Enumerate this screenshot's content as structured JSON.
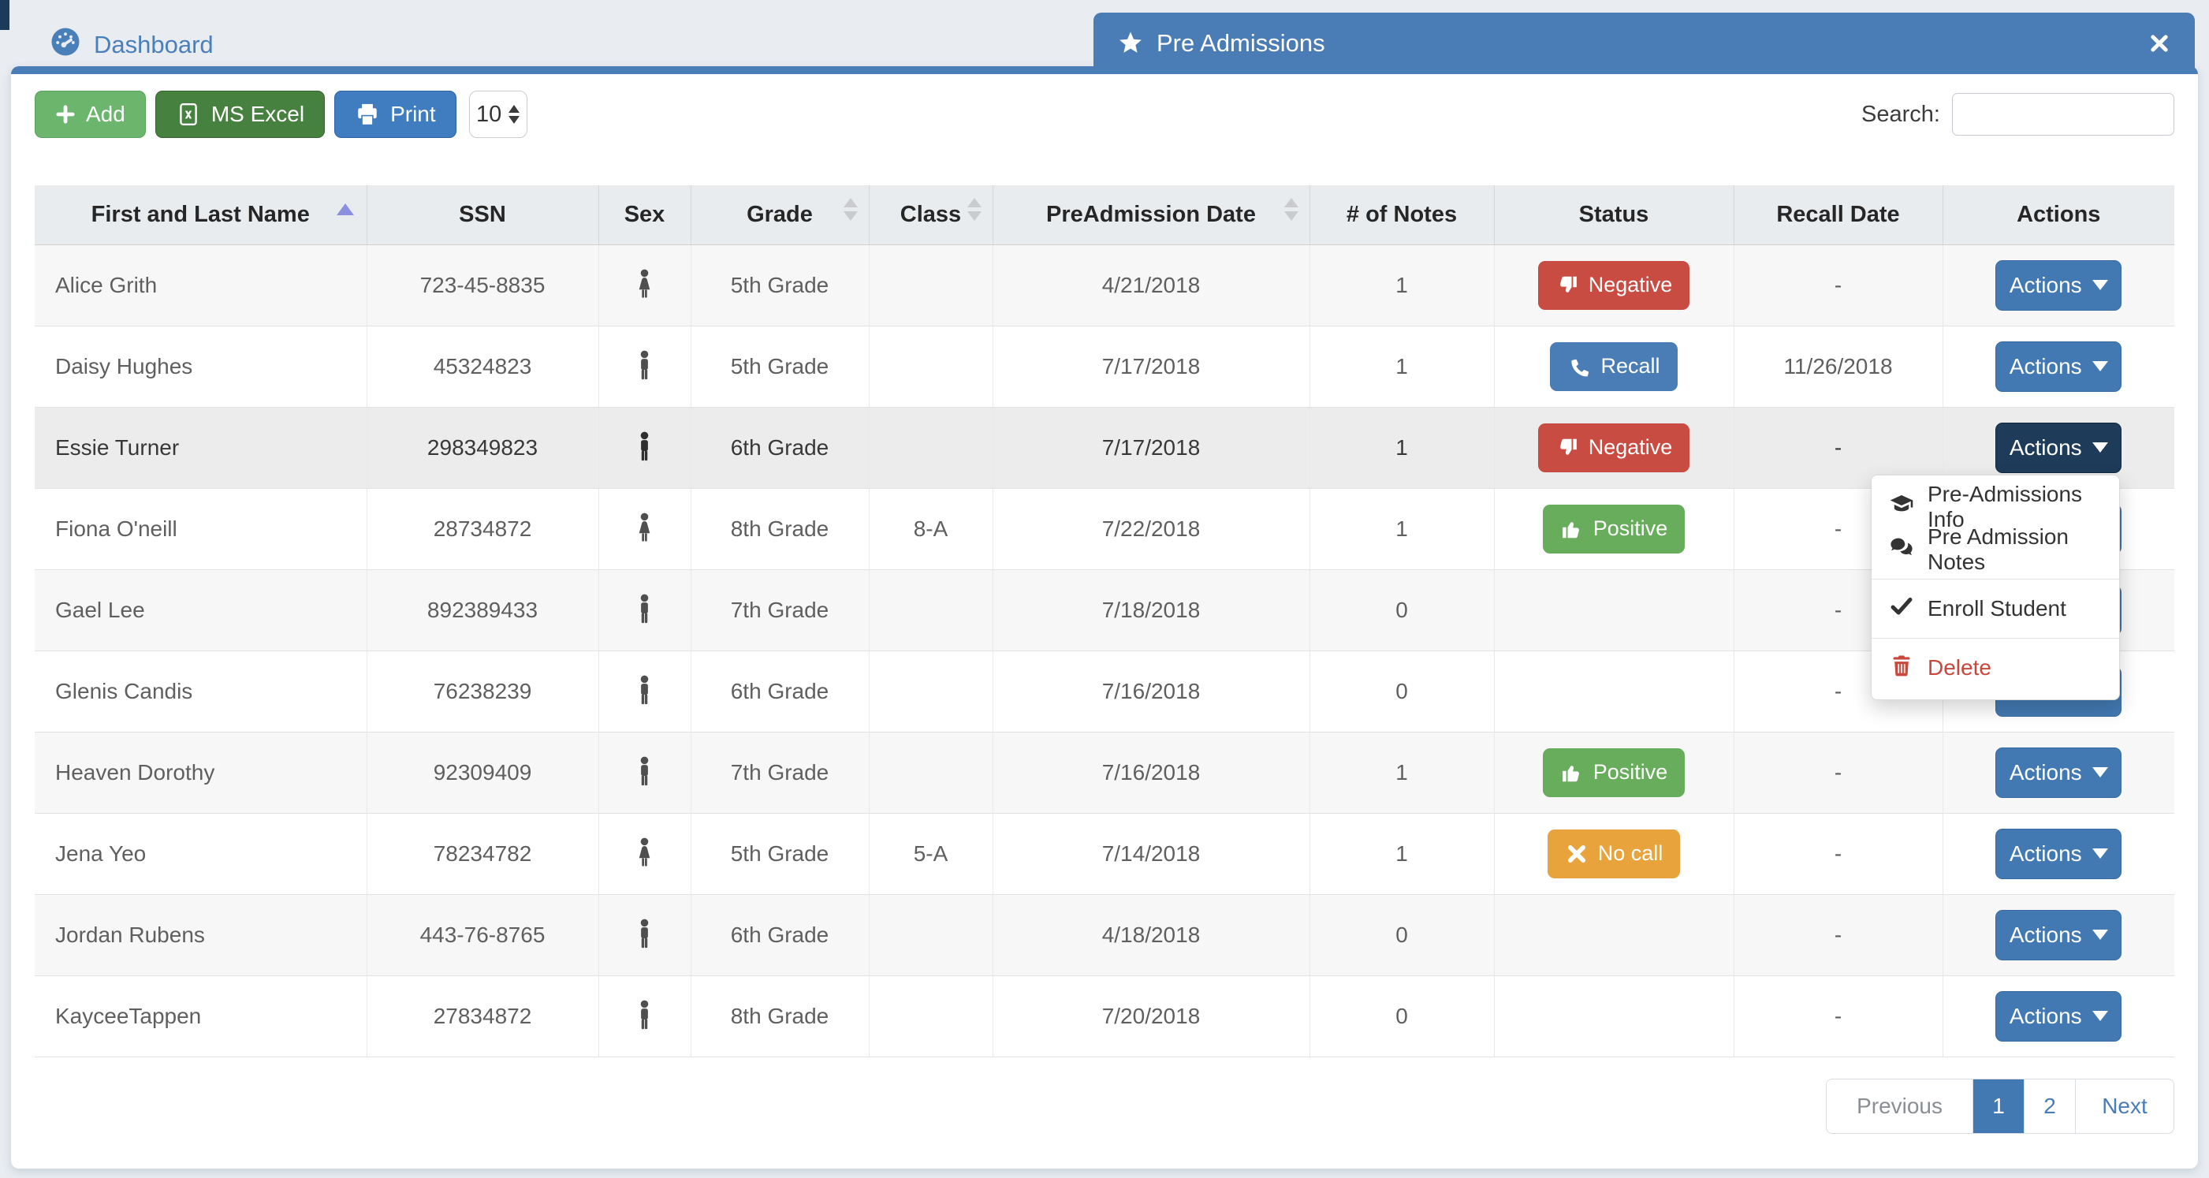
{
  "tabs": {
    "dashboard": "Dashboard",
    "pre_admissions": "Pre Admissions"
  },
  "toolbar": {
    "add": "Add",
    "excel": "MS Excel",
    "print": "Print",
    "page_size": "10",
    "search_label": "Search:",
    "search_value": ""
  },
  "table": {
    "actions_label": "Actions",
    "headers": [
      {
        "label": "First and Last Name",
        "sort": "asc"
      },
      {
        "label": "SSN",
        "sort": "none"
      },
      {
        "label": "Sex",
        "sort": "none"
      },
      {
        "label": "Grade",
        "sort": "both"
      },
      {
        "label": "Class",
        "sort": "both"
      },
      {
        "label": "PreAdmission Date",
        "sort": "both"
      },
      {
        "label": "# of Notes",
        "sort": "none"
      },
      {
        "label": "Status",
        "sort": "none"
      },
      {
        "label": "Recall Date",
        "sort": "none"
      },
      {
        "label": "Actions",
        "sort": "none"
      }
    ],
    "rows": [
      {
        "name": "Alice Grith",
        "ssn": "723-45-8835",
        "sex": "female",
        "grade": "5th Grade",
        "class": "",
        "date": "4/21/2018",
        "notes": "1",
        "status": {
          "label": "Negative",
          "type": "negative",
          "icon": "thumbs-down"
        },
        "recall": "-"
      },
      {
        "name": "Daisy Hughes",
        "ssn": "45324823",
        "sex": "male",
        "grade": "5th Grade",
        "class": "",
        "date": "7/17/2018",
        "notes": "1",
        "status": {
          "label": "Recall",
          "type": "recall",
          "icon": "phone"
        },
        "recall": "11/26/2018"
      },
      {
        "name": "Essie Turner",
        "ssn": "298349823",
        "sex": "male",
        "grade": "6th Grade",
        "class": "",
        "date": "7/17/2018",
        "notes": "1",
        "status": {
          "label": "Negative",
          "type": "negative",
          "icon": "thumbs-down"
        },
        "recall": "-",
        "active": true
      },
      {
        "name": "Fiona O'neill",
        "ssn": "28734872",
        "sex": "female",
        "grade": "8th Grade",
        "class": "8-A",
        "date": "7/22/2018",
        "notes": "1",
        "status": {
          "label": "Positive",
          "type": "positive",
          "icon": "thumbs-up"
        },
        "recall": "-"
      },
      {
        "name": "Gael Lee",
        "ssn": "892389433",
        "sex": "male",
        "grade": "7th Grade",
        "class": "",
        "date": "7/18/2018",
        "notes": "0",
        "status": null,
        "recall": "-"
      },
      {
        "name": "Glenis Candis",
        "ssn": "76238239",
        "sex": "male",
        "grade": "6th Grade",
        "class": "",
        "date": "7/16/2018",
        "notes": "0",
        "status": null,
        "recall": "-"
      },
      {
        "name": "Heaven Dorothy",
        "ssn": "92309409",
        "sex": "male",
        "grade": "7th Grade",
        "class": "",
        "date": "7/16/2018",
        "notes": "1",
        "status": {
          "label": "Positive",
          "type": "positive",
          "icon": "thumbs-up"
        },
        "recall": "-"
      },
      {
        "name": "Jena Yeo",
        "ssn": "78234782",
        "sex": "female",
        "grade": "5th Grade",
        "class": "5-A",
        "date": "7/14/2018",
        "notes": "1",
        "status": {
          "label": "No call",
          "type": "nocall",
          "icon": "x-mark"
        },
        "recall": "-"
      },
      {
        "name": "Jordan Rubens",
        "ssn": "443-76-8765",
        "sex": "male",
        "grade": "6th Grade",
        "class": "",
        "date": "4/18/2018",
        "notes": "0",
        "status": null,
        "recall": "-"
      },
      {
        "name": "KayceeTappen",
        "ssn": "27834872",
        "sex": "male",
        "grade": "8th Grade",
        "class": "",
        "date": "7/20/2018",
        "notes": "0",
        "status": null,
        "recall": "-"
      }
    ]
  },
  "actions_menu": {
    "items": [
      {
        "label": "Pre-Admissions Info",
        "icon": "graduation-cap"
      },
      {
        "label": "Pre Admission Notes",
        "icon": "comments"
      },
      {
        "divider": true
      },
      {
        "label": "Enroll Student",
        "icon": "check"
      },
      {
        "divider": true
      },
      {
        "label": "Delete",
        "icon": "trash",
        "danger": true
      }
    ]
  },
  "pagination": {
    "previous": "Previous",
    "pages": [
      "1",
      "2"
    ],
    "active_page": "1",
    "next": "Next"
  },
  "colors": {
    "accent_blue": "#4a7cb5",
    "dark_navy": "#1e3c5a",
    "negative_red": "#c94c42",
    "positive_green": "#67ad5b",
    "warning_orange": "#e8a33d",
    "add_green": "#6cb56c",
    "excel_green": "#47813f",
    "print_blue": "#3f7cc0",
    "sort_active_arrow": "#8a90dd"
  }
}
